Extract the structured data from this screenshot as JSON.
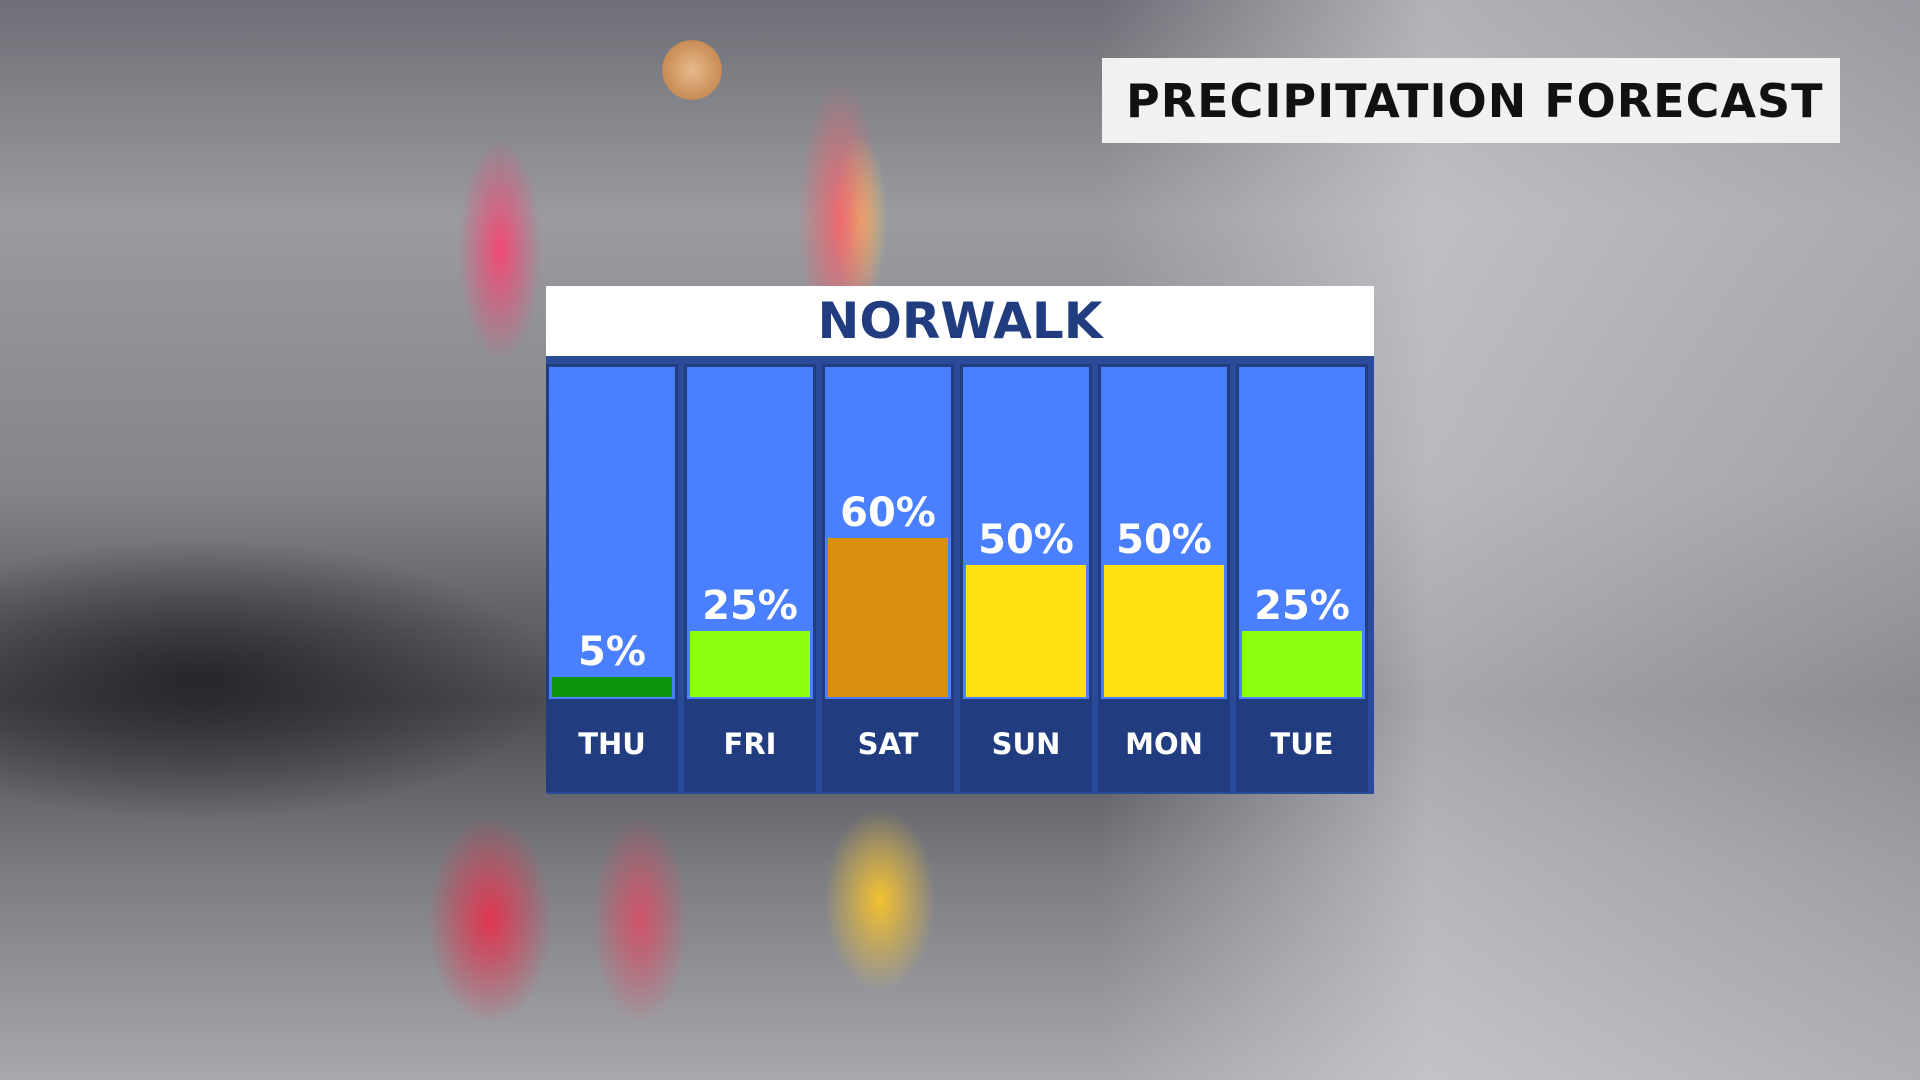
{
  "header": {
    "title": "PRECIPITATION FORECAST"
  },
  "chart_data": {
    "type": "bar",
    "title": "NORWALK",
    "categories": [
      "THU",
      "FRI",
      "SAT",
      "SUN",
      "MON",
      "TUE"
    ],
    "values": [
      5,
      25,
      60,
      50,
      50,
      25
    ],
    "labels": [
      "5%",
      "25%",
      "60%",
      "50%",
      "50%",
      "25%"
    ],
    "colors": [
      "#0d960d",
      "#8cff12",
      "#d9900e",
      "#ffe210",
      "#ffe210",
      "#8cff12"
    ],
    "ylim": [
      0,
      100
    ],
    "background_color": "#4a80ff",
    "label_band_color": "#223c80"
  }
}
